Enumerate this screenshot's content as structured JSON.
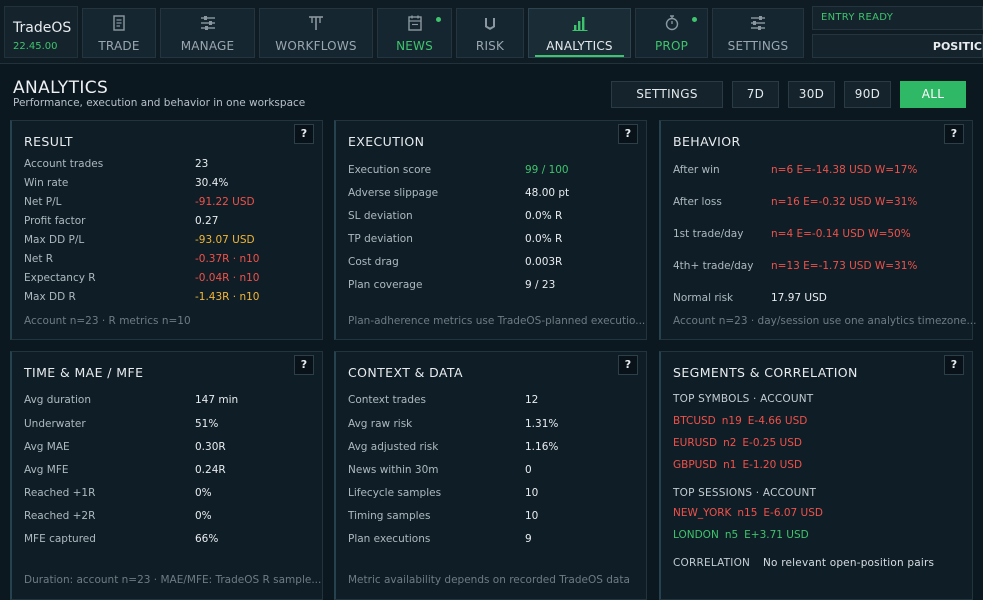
{
  "app": {
    "name": "TradeOS",
    "time": "22.45.00"
  },
  "tabs": [
    {
      "label": "TRADE",
      "icon": "document-icon"
    },
    {
      "label": "MANAGE",
      "icon": "sliders-icon"
    },
    {
      "label": "WORKFLOWS",
      "icon": "workflow-icon"
    },
    {
      "label": "NEWS",
      "icon": "calendar-icon"
    },
    {
      "label": "RISK",
      "icon": "shield-icon"
    },
    {
      "label": "ANALYTICS",
      "icon": "bar-chart-icon"
    },
    {
      "label": "PROP",
      "icon": "stopwatch-icon"
    },
    {
      "label": "SETTINGS",
      "icon": "settings-sliders-icon"
    }
  ],
  "status": {
    "entry": "ENTRY READY",
    "position": "POSITIC"
  },
  "page": {
    "title": "ANALYTICS",
    "subtitle": "Performance, execution and behavior in one workspace"
  },
  "controls": {
    "settings": "SETTINGS",
    "d7": "7D",
    "d30": "30D",
    "d90": "90D",
    "all": "ALL"
  },
  "help_label": "?",
  "colors": {
    "accent": "#3ec46d",
    "negative": "#f0514a",
    "warning": "#f2b636"
  },
  "result": {
    "title": "RESULT",
    "rows": [
      {
        "k": "Account trades",
        "v": "23"
      },
      {
        "k": "Win rate",
        "v": "30.4%"
      },
      {
        "k": "Net P/L",
        "v": "-91.22 USD"
      },
      {
        "k": "Profit factor",
        "v": "0.27"
      },
      {
        "k": "Max DD P/L",
        "v": "-93.07 USD"
      },
      {
        "k": "Net R",
        "v": "-0.37R · n10"
      },
      {
        "k": "Expectancy R",
        "v": "-0.04R · n10"
      },
      {
        "k": "Max DD R",
        "v": "-1.43R · n10"
      }
    ],
    "footnote": "Account n=23 · R metrics n=10"
  },
  "execution": {
    "title": "EXECUTION",
    "rows": [
      {
        "k": "Execution score",
        "v": "99 / 100"
      },
      {
        "k": "Adverse slippage",
        "v": "48.00 pt"
      },
      {
        "k": "SL deviation",
        "v": "0.0% R"
      },
      {
        "k": "TP deviation",
        "v": "0.0% R"
      },
      {
        "k": "Cost drag",
        "v": "0.003R"
      },
      {
        "k": "Plan coverage",
        "v": "9 / 23"
      }
    ],
    "footnote": "Plan-adherence metrics use TradeOS-planned executio..."
  },
  "behavior": {
    "title": "BEHAVIOR",
    "rows": [
      {
        "k": "After win",
        "v": "n=6  E=-14.38 USD  W=17%"
      },
      {
        "k": "After loss",
        "v": "n=16  E=-0.32 USD  W=31%"
      },
      {
        "k": "1st trade/day",
        "v": "n=4  E=-0.14 USD  W=50%"
      },
      {
        "k": "4th+ trade/day",
        "v": "n=13  E=-1.73 USD  W=31%"
      },
      {
        "k": "Normal risk",
        "v": "17.97 USD"
      }
    ],
    "footnote": "Account n=23 · day/session use one analytics timezone..."
  },
  "time": {
    "title": "TIME & MAE / MFE",
    "rows": [
      {
        "k": "Avg duration",
        "v": "147 min"
      },
      {
        "k": "Underwater",
        "v": "51%"
      },
      {
        "k": "Avg MAE",
        "v": "0.30R"
      },
      {
        "k": "Avg MFE",
        "v": "0.24R"
      },
      {
        "k": "Reached +1R",
        "v": "0%"
      },
      {
        "k": "Reached +2R",
        "v": "0%"
      },
      {
        "k": "MFE captured",
        "v": "66%"
      }
    ],
    "footnote": "Duration: account n=23 · MAE/MFE: TradeOS R sample..."
  },
  "context": {
    "title": "CONTEXT & DATA",
    "rows": [
      {
        "k": "Context trades",
        "v": "12"
      },
      {
        "k": "Avg raw risk",
        "v": "1.31%"
      },
      {
        "k": "Avg adjusted risk",
        "v": "1.16%"
      },
      {
        "k": "News within 30m",
        "v": "0"
      },
      {
        "k": "Lifecycle samples",
        "v": "10"
      },
      {
        "k": "Timing samples",
        "v": "10"
      },
      {
        "k": "Plan executions",
        "v": "9"
      }
    ],
    "footnote": "Metric availability depends on recorded TradeOS data"
  },
  "segments": {
    "title": "SEGMENTS & CORRELATION",
    "symbols_head": "TOP SYMBOLS · ACCOUNT",
    "symbols": [
      {
        "name": "BTCUSD",
        "n": "n19",
        "e": "E-4.66 USD"
      },
      {
        "name": "EURUSD",
        "n": "n2",
        "e": "E-0.25 USD"
      },
      {
        "name": "GBPUSD",
        "n": "n1",
        "e": "E-1.20 USD"
      }
    ],
    "sessions_head": "TOP SESSIONS · ACCOUNT",
    "sessions": [
      {
        "name": "NEW_YORK",
        "n": "n15",
        "e": "E-6.07 USD"
      },
      {
        "name": "LONDON",
        "n": "n5",
        "e": "E+3.71 USD"
      }
    ],
    "correlation_label": "CORRELATION",
    "correlation_value": "No relevant open-position pairs"
  }
}
